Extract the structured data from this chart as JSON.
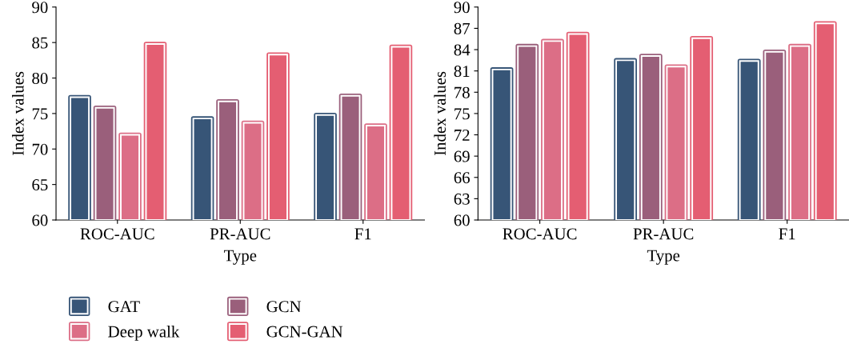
{
  "chart_data": [
    {
      "type": "bar",
      "xlabel": "Type",
      "ylabel": "Index values",
      "categories": [
        "ROC-AUC",
        "PR-AUC",
        "F1"
      ],
      "ylim": [
        60,
        90
      ],
      "yticks": [
        60,
        65,
        70,
        75,
        80,
        85,
        90
      ],
      "legend": "bottom",
      "grid": false,
      "series": [
        {
          "name": "GAT",
          "color": "#375577",
          "values": [
            77.3,
            74.3,
            74.8
          ]
        },
        {
          "name": "GCN",
          "color": "#9a5f7b",
          "values": [
            75.8,
            76.7,
            77.5
          ]
        },
        {
          "name": "Deep walk",
          "color": "#dc6e86",
          "values": [
            72.0,
            73.7,
            73.3
          ]
        },
        {
          "name": "GCN-GAN",
          "color": "#e45e72",
          "values": [
            84.8,
            83.3,
            84.4
          ]
        }
      ]
    },
    {
      "type": "bar",
      "xlabel": "Type",
      "ylabel": "Index values",
      "categories": [
        "ROC-AUC",
        "PR-AUC",
        "F1"
      ],
      "ylim": [
        60,
        90
      ],
      "yticks": [
        60,
        63,
        66,
        69,
        72,
        75,
        78,
        81,
        84,
        87,
        90
      ],
      "grid": false,
      "series": [
        {
          "color": "#375577",
          "values": [
            81.2,
            82.5,
            82.4
          ]
        },
        {
          "color": "#9a5f7b",
          "values": [
            84.5,
            83.1,
            83.7
          ]
        },
        {
          "color": "#dc6e86",
          "values": [
            85.2,
            81.6,
            84.5
          ]
        },
        {
          "color": "#e45e72",
          "values": [
            86.2,
            85.6,
            87.7
          ]
        }
      ]
    }
  ]
}
